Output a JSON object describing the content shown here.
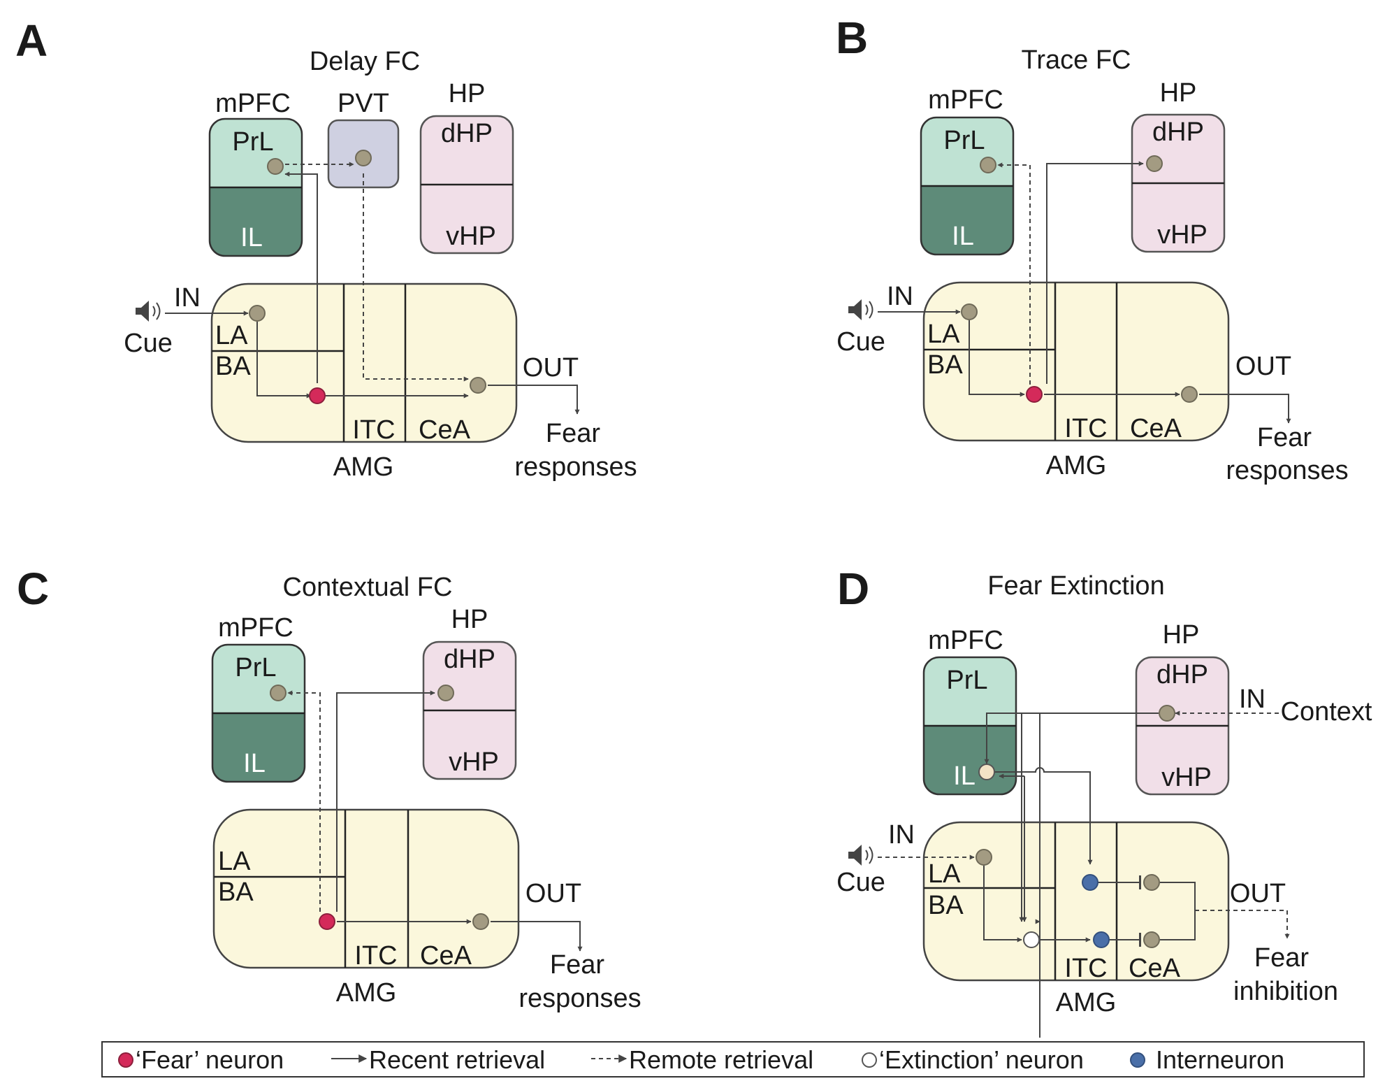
{
  "panels": {
    "A": {
      "letter": "A",
      "title": "Delay FC",
      "mpfc": "mPFC",
      "prl": "PrL",
      "il": "IL",
      "pvt": "PVT",
      "hp": "HP",
      "dhp": "dHP",
      "vhp": "vHP",
      "in": "IN",
      "cue": "Cue",
      "la": "LA",
      "ba": "BA",
      "itc": "ITC",
      "cea": "CeA",
      "amg": "AMG",
      "out": "OUT",
      "out_line1": "Fear",
      "out_line2": "responses"
    },
    "B": {
      "letter": "B",
      "title": "Trace FC",
      "mpfc": "mPFC",
      "prl": "PrL",
      "il": "IL",
      "hp": "HP",
      "dhp": "dHP",
      "vhp": "vHP",
      "in": "IN",
      "cue": "Cue",
      "la": "LA",
      "ba": "BA",
      "itc": "ITC",
      "cea": "CeA",
      "amg": "AMG",
      "out": "OUT",
      "out_line1": "Fear",
      "out_line2": "responses"
    },
    "C": {
      "letter": "C",
      "title": "Contextual FC",
      "mpfc": "mPFC",
      "prl": "PrL",
      "il": "IL",
      "hp": "HP",
      "dhp": "dHP",
      "vhp": "vHP",
      "la": "LA",
      "ba": "BA",
      "itc": "ITC",
      "cea": "CeA",
      "amg": "AMG",
      "out": "OUT",
      "out_line1": "Fear",
      "out_line2": "responses"
    },
    "D": {
      "letter": "D",
      "title": "Fear Extinction",
      "mpfc": "mPFC",
      "prl": "PrL",
      "il": "IL",
      "hp": "HP",
      "dhp": "dHP",
      "vhp": "vHP",
      "in": "IN",
      "context": "Context",
      "cue": "Cue",
      "la": "LA",
      "ba": "BA",
      "itc": "ITC",
      "cea": "CeA",
      "amg": "AMG",
      "out": "OUT",
      "out_line1": "Fear",
      "out_line2": "inhibition"
    }
  },
  "legend": {
    "fear_neuron": "‘Fear’ neuron",
    "recent": "Recent retrieval",
    "remote": "Remote retrieval",
    "extinction_neuron": "‘Extinction’ neuron",
    "interneuron": "Interneuron"
  },
  "colors": {
    "fear_neuron": "#d42a5a",
    "interneuron": "#4a6fa8",
    "neuron": "#a39b82",
    "mpfc_prl": "#bfe2d3",
    "mpfc_il": "#5e8b79",
    "pvt": "#cfd0e1",
    "hp": "#f1dfe8",
    "amg": "#fbf7dc"
  }
}
